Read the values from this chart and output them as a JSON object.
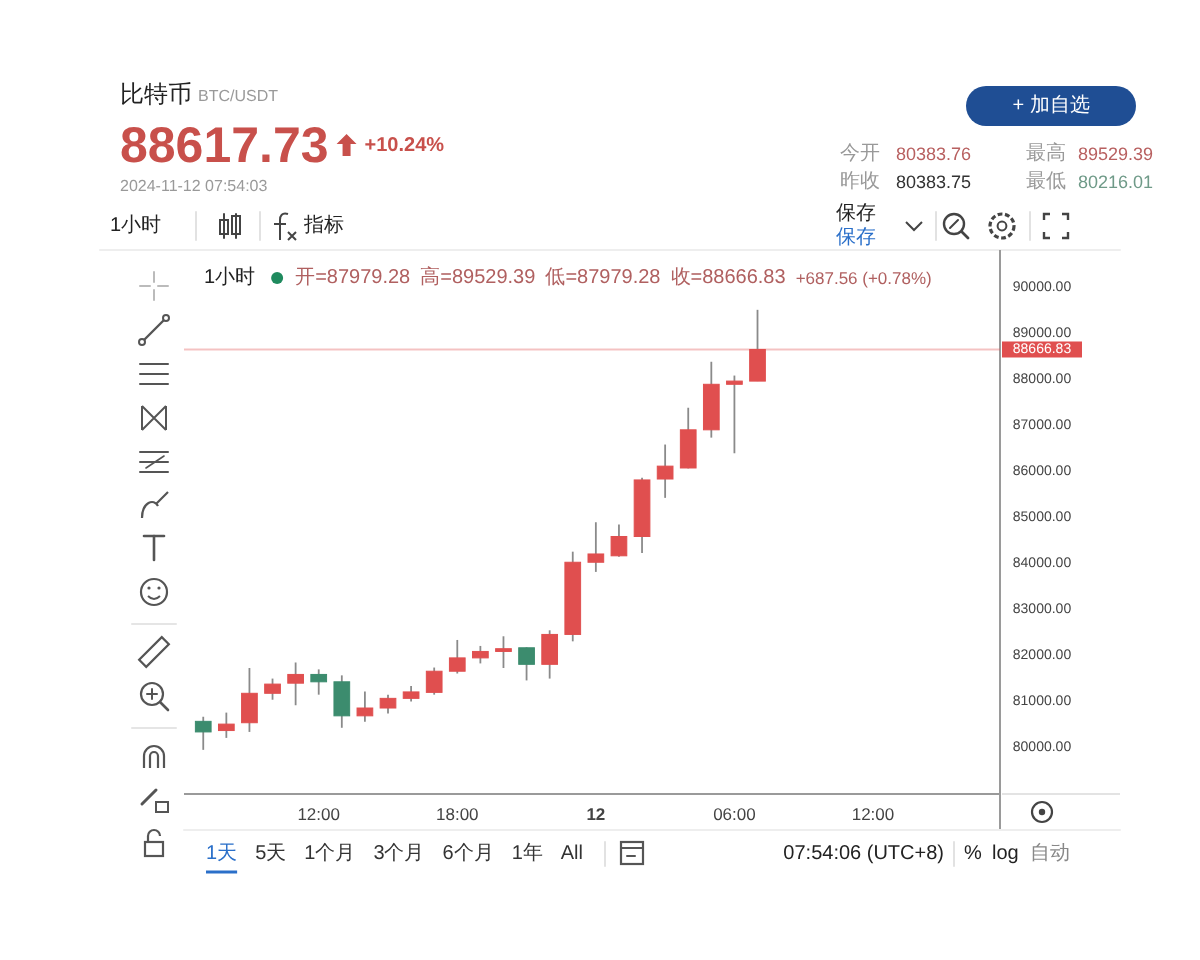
{
  "chart_data": {
    "type": "candlestick",
    "title": "比特币",
    "subtitle": "BTC/USDT",
    "x": [
      "2024-11-11T07:00",
      "2024-11-11T08:00",
      "2024-11-11T09:00",
      "2024-11-11T10:00",
      "2024-11-11T11:00",
      "2024-11-11T12:00",
      "2024-11-11T13:00",
      "2024-11-11T14:00",
      "2024-11-11T15:00",
      "2024-11-11T16:00",
      "2024-11-11T17:00",
      "2024-11-11T18:00",
      "2024-11-11T19:00",
      "2024-11-11T20:00",
      "2024-11-11T21:00",
      "2024-11-11T22:00",
      "2024-11-11T23:00",
      "2024-11-12T00:00",
      "2024-11-12T01:00",
      "2024-11-12T02:00",
      "2024-11-12T03:00",
      "2024-11-12T04:00",
      "2024-11-12T05:00",
      "2024-11-12T06:00",
      "2024-11-12T07:00"
    ],
    "ohlc": [
      [
        80580,
        80680,
        79960,
        80350
      ],
      [
        80380,
        80770,
        80220,
        80520
      ],
      [
        80550,
        81740,
        80350,
        81190
      ],
      [
        81190,
        81510,
        81050,
        81390
      ],
      [
        81410,
        81860,
        80930,
        81600
      ],
      [
        81600,
        81710,
        81160,
        81440
      ],
      [
        81440,
        81580,
        80440,
        80700
      ],
      [
        80700,
        81230,
        80570,
        80870
      ],
      [
        80870,
        81160,
        80750,
        81080
      ],
      [
        81080,
        81350,
        81010,
        81220
      ],
      [
        81210,
        81750,
        81160,
        81670
      ],
      [
        81670,
        82350,
        81620,
        81960
      ],
      [
        81960,
        82220,
        81840,
        82100
      ],
      [
        82100,
        82430,
        81740,
        82160
      ],
      [
        82180,
        82190,
        81470,
        81820
      ],
      [
        81820,
        82560,
        81510,
        82470
      ],
      [
        82470,
        84270,
        82320,
        84040
      ],
      [
        84040,
        84910,
        83830,
        84220
      ],
      [
        84180,
        84860,
        84160,
        84600
      ],
      [
        84600,
        85880,
        84240,
        85830
      ],
      [
        85850,
        86600,
        85440,
        86130
      ],
      [
        86090,
        87400,
        86080,
        86920
      ],
      [
        86920,
        88400,
        86750,
        87910
      ],
      [
        87910,
        88100,
        86410,
        87980
      ],
      [
        87979.28,
        89529.39,
        87979.28,
        88666.83
      ]
    ],
    "colors": [
      "#3c8c6e",
      "#e04f4f",
      "#e04f4f",
      "#e04f4f",
      "#e04f4f",
      "#3c8c6e",
      "#3c8c6e",
      "#e04f4f",
      "#e04f4f",
      "#e04f4f",
      "#e04f4f",
      "#e04f4f",
      "#e04f4f",
      "#e04f4f",
      "#3c8c6e",
      "#e04f4f",
      "#e04f4f",
      "#e04f4f",
      "#e04f4f",
      "#e04f4f",
      "#e04f4f",
      "#e04f4f",
      "#e04f4f",
      "#e04f4f",
      "#e04f4f"
    ],
    "xlim": [
      "2024-11-11T06:10",
      "2024-11-12T17:30"
    ],
    "xticks": [
      {
        "value": "2024-11-11T12:00",
        "label": "12:00"
      },
      {
        "value": "2024-11-11T18:00",
        "label": "18:00"
      },
      {
        "value": "2024-11-12T00:00",
        "label": "12"
      },
      {
        "value": "2024-11-12T06:00",
        "label": "06:00"
      },
      {
        "value": "2024-11-12T12:00",
        "label": "12:00"
      }
    ],
    "ylim": [
      79000,
      90700
    ],
    "yticks": [
      {
        "value": 80000,
        "label": "80000.00"
      },
      {
        "value": 81000,
        "label": "81000.00"
      },
      {
        "value": 82000,
        "label": "82000.00"
      },
      {
        "value": 83000,
        "label": "83000.00"
      },
      {
        "value": 84000,
        "label": "84000.00"
      },
      {
        "value": 85000,
        "label": "85000.00"
      },
      {
        "value": 86000,
        "label": "86000.00"
      },
      {
        "value": 87000,
        "label": "87000.00"
      },
      {
        "value": 88000,
        "label": "88000.00"
      },
      {
        "value": 89000,
        "label": "89000.00"
      },
      {
        "value": 90000,
        "label": "90000.00"
      }
    ],
    "ref_lines": [
      {
        "axis": "y",
        "value": 88666.83,
        "label": "88666.83",
        "color": "#e04f4f"
      }
    ],
    "annotations": [
      "88617.73",
      "+10.24%",
      "2024-11-12 07:54:03",
      "今开",
      "80383.76",
      "昨收",
      "80383.75",
      "最高",
      "89529.39",
      "最低",
      "80216.01",
      "+ 加自选",
      "1小时",
      "指标",
      "保存",
      "保存",
      "1小时",
      "开=87979.28",
      "高=89529.39",
      "低=87979.28",
      "收=88666.83",
      "+687.56 (+0.78%)",
      "1天",
      "5天",
      "1个月",
      "3个月",
      "6个月",
      "1年",
      "All",
      "07:54:06 (UTC+8)",
      "%",
      "log",
      "自动"
    ]
  }
}
